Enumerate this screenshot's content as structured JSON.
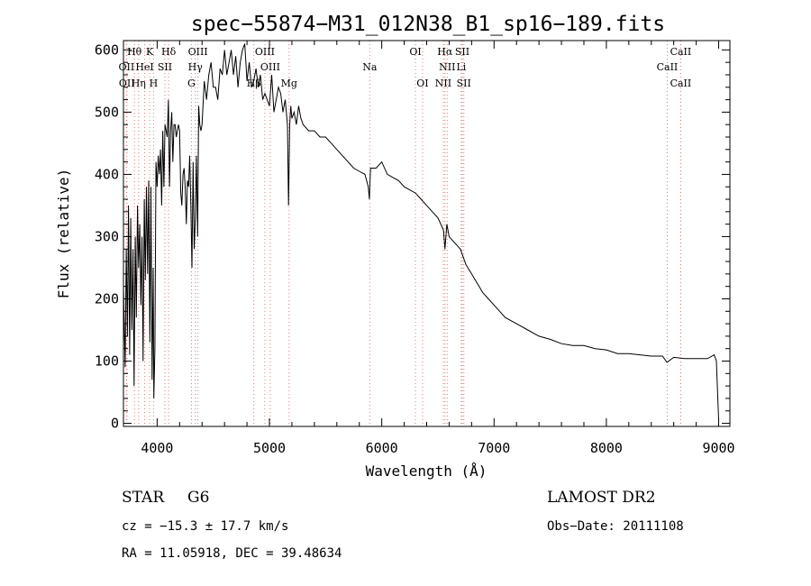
{
  "chart_data": {
    "type": "line",
    "title": "spec−55874−M31_012N38_B1_sp16−189.fits",
    "xlabel": "Wavelength (Å)",
    "ylabel": "Flux (relative)",
    "xlim": [
      3700,
      9100
    ],
    "ylim": [
      -5,
      615
    ],
    "xticks": [
      4000,
      5000,
      6000,
      7000,
      8000,
      9000
    ],
    "yticks": [
      0,
      100,
      200,
      300,
      400,
      500,
      600
    ],
    "line_style": "#000000",
    "marker_color": "#e07a7a",
    "series": [
      {
        "x": [
          3700,
          3715,
          3725,
          3735,
          3745,
          3755,
          3765,
          3775,
          3785,
          3795,
          3805,
          3815,
          3825,
          3835,
          3845,
          3855,
          3865,
          3875,
          3885,
          3895,
          3905,
          3915,
          3925,
          3935,
          3945,
          3955,
          3965,
          3970,
          3980,
          3990,
          4000,
          4010,
          4020,
          4030,
          4040,
          4050,
          4060,
          4070,
          4080,
          4090,
          4100,
          4110,
          4120,
          4130,
          4140,
          4150,
          4160,
          4170,
          4180,
          4190,
          4200,
          4210,
          4220,
          4230,
          4240,
          4250,
          4260,
          4270,
          4280,
          4290,
          4300,
          4310,
          4320,
          4330,
          4340,
          4350,
          4360,
          4370,
          4380,
          4390,
          4400,
          4420,
          4440,
          4460,
          4480,
          4500,
          4520,
          4540,
          4560,
          4580,
          4600,
          4620,
          4640,
          4660,
          4680,
          4700,
          4720,
          4740,
          4760,
          4780,
          4800,
          4820,
          4840,
          4860,
          4880,
          4900,
          4920,
          4940,
          4960,
          4980,
          5000,
          5020,
          5040,
          5060,
          5080,
          5100,
          5120,
          5140,
          5160,
          5170,
          5180,
          5190,
          5200,
          5220,
          5240,
          5260,
          5280,
          5300,
          5350,
          5400,
          5450,
          5500,
          5550,
          5600,
          5650,
          5700,
          5750,
          5800,
          5850,
          5880,
          5890,
          5900,
          5950,
          6000,
          6050,
          6100,
          6150,
          6200,
          6250,
          6300,
          6350,
          6400,
          6450,
          6500,
          6550,
          6563,
          6580,
          6600,
          6650,
          6700,
          6750,
          6800,
          6850,
          6900,
          6950,
          7000,
          7100,
          7200,
          7300,
          7400,
          7500,
          7600,
          7700,
          7800,
          7900,
          8000,
          8100,
          8200,
          8300,
          8400,
          8500,
          8540,
          8600,
          8700,
          8800,
          8900,
          8960,
          8980,
          9000
        ],
        "y": [
          220,
          90,
          280,
          140,
          350,
          110,
          330,
          150,
          280,
          60,
          300,
          170,
          350,
          250,
          320,
          190,
          300,
          100,
          360,
          230,
          380,
          240,
          390,
          130,
          380,
          70,
          250,
          40,
          120,
          420,
          380,
          430,
          400,
          440,
          350,
          470,
          380,
          480,
          470,
          460,
          520,
          380,
          470,
          500,
          420,
          480,
          480,
          460,
          470,
          480,
          470,
          370,
          350,
          400,
          410,
          380,
          320,
          390,
          380,
          430,
          350,
          250,
          420,
          280,
          330,
          430,
          300,
          510,
          480,
          470,
          480,
          550,
          520,
          560,
          580,
          540,
          540,
          520,
          570,
          560,
          600,
          560,
          580,
          600,
          560,
          590,
          540,
          580,
          600,
          610,
          550,
          580,
          540,
          550,
          570,
          540,
          560,
          520,
          530,
          520,
          510,
          560,
          500,
          520,
          540,
          530,
          500,
          520,
          480,
          350,
          480,
          510,
          490,
          500,
          480,
          510,
          490,
          480,
          470,
          470,
          460,
          460,
          450,
          440,
          430,
          420,
          410,
          405,
          400,
          380,
          360,
          410,
          410,
          420,
          400,
          395,
          390,
          380,
          375,
          370,
          360,
          350,
          340,
          330,
          310,
          280,
          320,
          300,
          290,
          280,
          255,
          240,
          225,
          210,
          200,
          190,
          170,
          160,
          150,
          140,
          135,
          128,
          125,
          125,
          120,
          118,
          112,
          112,
          110,
          108,
          108,
          98,
          106,
          104,
          104,
          104,
          110,
          100,
          5
        ]
      }
    ],
    "spectral_lines": [
      {
        "label": "Hθ",
        "x": 3798,
        "row": 0
      },
      {
        "label": "K",
        "x": 3934,
        "row": 0
      },
      {
        "label": "Hδ",
        "x": 4102,
        "row": 0
      },
      {
        "label": "OIII",
        "x": 4363,
        "row": 0
      },
      {
        "label": "OIII",
        "x": 4959,
        "row": 0
      },
      {
        "label": "OI",
        "x": 6300,
        "row": 0
      },
      {
        "label": "Hα",
        "x": 6563,
        "row": 0
      },
      {
        "label": "SII",
        "x": 6717,
        "row": 0
      },
      {
        "label": "CaII",
        "x": 8662,
        "row": 0
      },
      {
        "label": "OII",
        "x": 3727,
        "row": 1
      },
      {
        "label": "HeI",
        "x": 3889,
        "row": 1
      },
      {
        "label": "SII",
        "x": 4069,
        "row": 1
      },
      {
        "label": "Hγ",
        "x": 4340,
        "row": 1
      },
      {
        "label": "OIII",
        "x": 5007,
        "row": 1
      },
      {
        "label": "Na",
        "x": 5893,
        "row": 1
      },
      {
        "label": "NII",
        "x": 6583,
        "row": 1
      },
      {
        "label": "Li",
        "x": 6708,
        "row": 1
      },
      {
        "label": "CaII",
        "x": 8542,
        "row": 1
      },
      {
        "label": "OII",
        "x": 3730,
        "row": 2
      },
      {
        "label": "Hη",
        "x": 3835,
        "row": 2
      },
      {
        "label": "H",
        "x": 3968,
        "row": 2
      },
      {
        "label": "G",
        "x": 4305,
        "row": 2
      },
      {
        "label": "Hβ",
        "x": 4861,
        "row": 2
      },
      {
        "label": "Mg",
        "x": 5175,
        "row": 2
      },
      {
        "label": "OI",
        "x": 6363,
        "row": 2
      },
      {
        "label": "NII",
        "x": 6548,
        "row": 2
      },
      {
        "label": "SII",
        "x": 6731,
        "row": 2
      },
      {
        "label": "CaII",
        "x": 8662,
        "row": 2
      }
    ]
  },
  "footer": {
    "class_label": "STAR",
    "subclass": "G6",
    "survey": "LAMOST DR2",
    "cz": "cz = −15.3 ± 17.7 km/s",
    "obs_date": "Obs−Date: 20111108",
    "coords": "RA =  11.05918, DEC =  39.48634"
  }
}
